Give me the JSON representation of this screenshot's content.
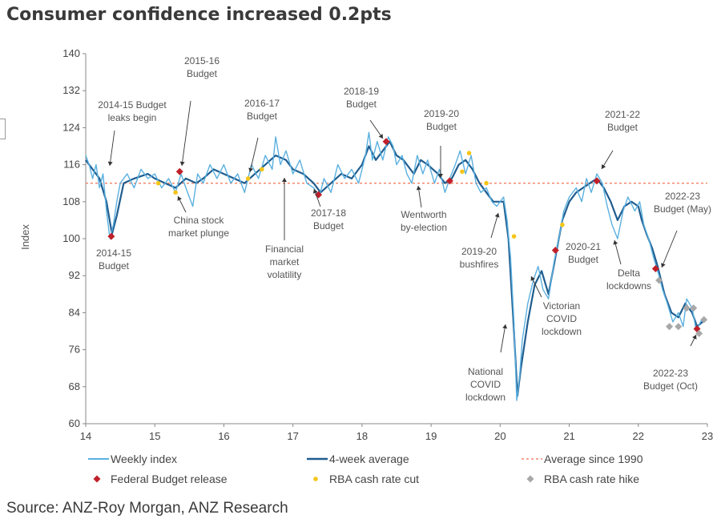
{
  "title": "Consumer confidence increased 0.2pts",
  "source": "Source: ANZ-Roy Morgan, ANZ Research",
  "colors": {
    "weekly": "#5bb0df",
    "avg4": "#1f5d8f",
    "longrun": "#f08a6e",
    "budget": "#c0202a",
    "cut": "#f5c518",
    "hike": "#a8a8a8"
  },
  "chart_data": {
    "type": "line",
    "ylabel": "Index",
    "xlim": [
      14,
      23
    ],
    "ylim": [
      60,
      140
    ],
    "xticks": [
      "14",
      "15",
      "16",
      "17",
      "18",
      "19",
      "20",
      "21",
      "22",
      "23"
    ],
    "yticks": [
      "60",
      "68",
      "76",
      "84",
      "92",
      "100",
      "108",
      "116",
      "124",
      "132",
      "140"
    ],
    "average_since_1990": 112,
    "series": [
      {
        "name": "4-week average",
        "points": [
          [
            14.0,
            117
          ],
          [
            14.1,
            115
          ],
          [
            14.2,
            113
          ],
          [
            14.3,
            108
          ],
          [
            14.38,
            101
          ],
          [
            14.45,
            105
          ],
          [
            14.55,
            112
          ],
          [
            14.7,
            113
          ],
          [
            14.9,
            114
          ],
          [
            15.0,
            113
          ],
          [
            15.15,
            112
          ],
          [
            15.3,
            111
          ],
          [
            15.45,
            113
          ],
          [
            15.6,
            112
          ],
          [
            15.7,
            113
          ],
          [
            15.85,
            115
          ],
          [
            16.0,
            114
          ],
          [
            16.15,
            113
          ],
          [
            16.3,
            112
          ],
          [
            16.45,
            114
          ],
          [
            16.6,
            116
          ],
          [
            16.75,
            118
          ],
          [
            16.9,
            117
          ],
          [
            17.0,
            115
          ],
          [
            17.15,
            114
          ],
          [
            17.3,
            112
          ],
          [
            17.4,
            110
          ],
          [
            17.55,
            112
          ],
          [
            17.7,
            114
          ],
          [
            17.85,
            113
          ],
          [
            18.0,
            116
          ],
          [
            18.1,
            120
          ],
          [
            18.2,
            117
          ],
          [
            18.3,
            119
          ],
          [
            18.4,
            121
          ],
          [
            18.5,
            118
          ],
          [
            18.6,
            117
          ],
          [
            18.75,
            114
          ],
          [
            18.85,
            117
          ],
          [
            18.95,
            116
          ],
          [
            19.1,
            114
          ],
          [
            19.2,
            112
          ],
          [
            19.3,
            113
          ],
          [
            19.4,
            116
          ],
          [
            19.5,
            117
          ],
          [
            19.6,
            115
          ],
          [
            19.7,
            112
          ],
          [
            19.8,
            110
          ],
          [
            19.9,
            108
          ],
          [
            20.05,
            108
          ],
          [
            20.12,
            100
          ],
          [
            20.2,
            80
          ],
          [
            20.25,
            66
          ],
          [
            20.3,
            72
          ],
          [
            20.4,
            82
          ],
          [
            20.5,
            90
          ],
          [
            20.6,
            93
          ],
          [
            20.7,
            88
          ],
          [
            20.8,
            96
          ],
          [
            20.9,
            104
          ],
          [
            21.0,
            108
          ],
          [
            21.1,
            110
          ],
          [
            21.2,
            111
          ],
          [
            21.3,
            112
          ],
          [
            21.4,
            113
          ],
          [
            21.5,
            111
          ],
          [
            21.6,
            108
          ],
          [
            21.7,
            104
          ],
          [
            21.8,
            107
          ],
          [
            21.9,
            108
          ],
          [
            22.0,
            107
          ],
          [
            22.05,
            104
          ],
          [
            22.12,
            101
          ],
          [
            22.2,
            98
          ],
          [
            22.28,
            94
          ],
          [
            22.38,
            88
          ],
          [
            22.48,
            84
          ],
          [
            22.58,
            83
          ],
          [
            22.68,
            86
          ],
          [
            22.78,
            84
          ],
          [
            22.85,
            81
          ],
          [
            22.93,
            82
          ]
        ]
      },
      {
        "name": "Weekly index",
        "points": [
          [
            14.0,
            118
          ],
          [
            14.05,
            116
          ],
          [
            14.1,
            113
          ],
          [
            14.15,
            116
          ],
          [
            14.2,
            111
          ],
          [
            14.25,
            114
          ],
          [
            14.3,
            106
          ],
          [
            14.35,
            100
          ],
          [
            14.4,
            103
          ],
          [
            14.45,
            108
          ],
          [
            14.5,
            112
          ],
          [
            14.6,
            114
          ],
          [
            14.7,
            111
          ],
          [
            14.8,
            115
          ],
          [
            14.9,
            113
          ],
          [
            15.0,
            114
          ],
          [
            15.1,
            111
          ],
          [
            15.2,
            113
          ],
          [
            15.3,
            110
          ],
          [
            15.38,
            114
          ],
          [
            15.45,
            111
          ],
          [
            15.55,
            107
          ],
          [
            15.62,
            114
          ],
          [
            15.7,
            112
          ],
          [
            15.8,
            116
          ],
          [
            15.9,
            113
          ],
          [
            16.0,
            116
          ],
          [
            16.1,
            112
          ],
          [
            16.2,
            114
          ],
          [
            16.3,
            110
          ],
          [
            16.4,
            116
          ],
          [
            16.5,
            113
          ],
          [
            16.6,
            118
          ],
          [
            16.7,
            115
          ],
          [
            16.75,
            122
          ],
          [
            16.82,
            116
          ],
          [
            16.9,
            119
          ],
          [
            17.0,
            114
          ],
          [
            17.1,
            117
          ],
          [
            17.2,
            112
          ],
          [
            17.3,
            111
          ],
          [
            17.38,
            109
          ],
          [
            17.45,
            113
          ],
          [
            17.55,
            110
          ],
          [
            17.65,
            116
          ],
          [
            17.75,
            113
          ],
          [
            17.85,
            115
          ],
          [
            17.95,
            112
          ],
          [
            18.05,
            118
          ],
          [
            18.1,
            123
          ],
          [
            18.15,
            117
          ],
          [
            18.22,
            121
          ],
          [
            18.3,
            117
          ],
          [
            18.38,
            122
          ],
          [
            18.45,
            120
          ],
          [
            18.5,
            116
          ],
          [
            18.58,
            118
          ],
          [
            18.65,
            114
          ],
          [
            18.72,
            112
          ],
          [
            18.8,
            118
          ],
          [
            18.88,
            114
          ],
          [
            18.95,
            117
          ],
          [
            19.05,
            112
          ],
          [
            19.12,
            115
          ],
          [
            19.2,
            110
          ],
          [
            19.27,
            113
          ],
          [
            19.35,
            116
          ],
          [
            19.42,
            119
          ],
          [
            19.5,
            114
          ],
          [
            19.58,
            118
          ],
          [
            19.65,
            112
          ],
          [
            19.72,
            110
          ],
          [
            19.8,
            111
          ],
          [
            19.88,
            108
          ],
          [
            19.95,
            107
          ],
          [
            20.05,
            109
          ],
          [
            20.1,
            104
          ],
          [
            20.15,
            96
          ],
          [
            20.2,
            82
          ],
          [
            20.24,
            65
          ],
          [
            20.28,
            70
          ],
          [
            20.32,
            78
          ],
          [
            20.4,
            86
          ],
          [
            20.48,
            91
          ],
          [
            20.55,
            94
          ],
          [
            20.62,
            89
          ],
          [
            20.7,
            87
          ],
          [
            20.78,
            95
          ],
          [
            20.85,
            100
          ],
          [
            20.92,
            106
          ],
          [
            21.0,
            109
          ],
          [
            21.1,
            111
          ],
          [
            21.18,
            108
          ],
          [
            21.25,
            113
          ],
          [
            21.32,
            110
          ],
          [
            21.4,
            114
          ],
          [
            21.48,
            112
          ],
          [
            21.55,
            107
          ],
          [
            21.62,
            103
          ],
          [
            21.7,
            100
          ],
          [
            21.78,
            106
          ],
          [
            21.85,
            109
          ],
          [
            21.95,
            106
          ],
          [
            22.02,
            108
          ],
          [
            22.08,
            103
          ],
          [
            22.15,
            100
          ],
          [
            22.22,
            96
          ],
          [
            22.3,
            92
          ],
          [
            22.35,
            89
          ],
          [
            22.42,
            86
          ],
          [
            22.5,
            82
          ],
          [
            22.58,
            84
          ],
          [
            22.65,
            81
          ],
          [
            22.7,
            87
          ],
          [
            22.78,
            85
          ],
          [
            22.84,
            80
          ],
          [
            22.9,
            82
          ],
          [
            22.95,
            83
          ]
        ]
      }
    ],
    "markers": {
      "Federal Budget release": [
        [
          14.37,
          100.5
        ],
        [
          15.36,
          114.5
        ],
        [
          17.37,
          109.5
        ],
        [
          18.35,
          121
        ],
        [
          19.27,
          112.5
        ],
        [
          20.8,
          97.5
        ],
        [
          21.4,
          112.5
        ],
        [
          22.25,
          93.5
        ],
        [
          22.85,
          80.5
        ]
      ],
      "RBA cash rate cut": [
        [
          15.05,
          112
        ],
        [
          15.3,
          110
        ],
        [
          16.35,
          113
        ],
        [
          16.55,
          115
        ],
        [
          19.45,
          114.5
        ],
        [
          19.55,
          118.5
        ],
        [
          19.8,
          112
        ],
        [
          20.2,
          100.5
        ],
        [
          20.9,
          103
        ]
      ],
      "RBA cash rate hike": [
        [
          22.3,
          91
        ],
        [
          22.45,
          81
        ],
        [
          22.58,
          81
        ],
        [
          22.7,
          85
        ],
        [
          22.8,
          85
        ],
        [
          22.88,
          79.5
        ],
        [
          22.95,
          82.5
        ]
      ]
    },
    "annotations": [
      {
        "text": [
          "2014-15 Budget",
          "leaks begin"
        ]
      },
      {
        "text": [
          "2014-15",
          "Budget"
        ]
      },
      {
        "text": [
          "2015-16",
          "Budget"
        ]
      },
      {
        "text": [
          "China stock",
          "market plunge"
        ]
      },
      {
        "text": [
          "2016-17",
          "Budget"
        ]
      },
      {
        "text": [
          "Financial",
          "market",
          "volatility"
        ]
      },
      {
        "text": [
          "2017-18",
          "Budget"
        ]
      },
      {
        "text": [
          "2018-19",
          "Budget"
        ]
      },
      {
        "text": [
          "Wentworth",
          "by-election"
        ]
      },
      {
        "text": [
          "2019-20",
          "Budget"
        ]
      },
      {
        "text": [
          "2019-20",
          "bushfires"
        ]
      },
      {
        "text": [
          "National",
          "COVID",
          "lockdown"
        ]
      },
      {
        "text": [
          "Victorian",
          "COVID",
          "lockdown"
        ]
      },
      {
        "text": [
          "2020-21",
          "Budget"
        ]
      },
      {
        "text": [
          "2021-22",
          "Budget"
        ]
      },
      {
        "text": [
          "Delta",
          "lockdowns"
        ]
      },
      {
        "text": [
          "2022-23",
          "Budget (May)"
        ]
      },
      {
        "text": [
          "2022-23",
          "Budget (Oct)"
        ]
      }
    ],
    "legend": [
      "Weekly index",
      "4-week average",
      "Average since 1990",
      "Federal Budget release",
      "RBA cash rate cut",
      "RBA cash rate hike"
    ]
  }
}
